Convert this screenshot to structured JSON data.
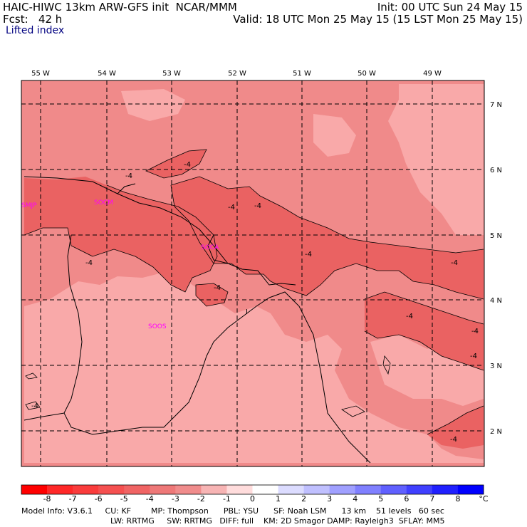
{
  "header": {
    "model_title": "HAIC-HIWC 13km ARW-GFS init",
    "org": "NCAR/MMM",
    "init": "Init: 00 UTC Sun 24 May 15",
    "fcst_label": "Fcst:",
    "fcst_value": "42 h",
    "valid": "Valid: 18 UTC Mon 25 May 15 (15 LST Mon 25 May 15)",
    "field": "Lifted index"
  },
  "map": {
    "lon_labels": [
      "55 W",
      "54 W",
      "53 W",
      "52 W",
      "51 W",
      "50 W",
      "49 W"
    ],
    "lat_labels": [
      "7 N",
      "6 N",
      "5 N",
      "4 N",
      "3 N",
      "2 N"
    ],
    "stations": [
      "SMJP",
      "SOCM",
      "SOCA",
      "SOOS"
    ],
    "contour_label": "-4",
    "contour_label_mark": "I",
    "colors": {
      "background": "#f08a8a",
      "lighter": "#f9a9a9",
      "darker": "#ea6262",
      "station": "#ff00ff",
      "grid": "#000000"
    }
  },
  "colorbar": {
    "ticks": [
      "-8",
      "-7",
      "-6",
      "-5",
      "-4",
      "-3",
      "-2",
      "-1",
      "0",
      "1",
      "2",
      "3",
      "4",
      "5",
      "6",
      "7",
      "8"
    ],
    "unit": "°C",
    "colors": [
      "#ff0000",
      "#ff2828",
      "#fa3c3c",
      "#f55050",
      "#f06464",
      "#ee7878",
      "#f08c8c",
      "#f7b4b4",
      "#ffdcdc",
      "#ffffff",
      "#dcdcff",
      "#c0c0ff",
      "#a0a0ff",
      "#8080ff",
      "#6060ff",
      "#4040ff",
      "#2020ff",
      "#0000ff"
    ]
  },
  "footer": {
    "line1": "Model Info: V3.6.1     CU: KF        MP: Thompson      PBL: YSU      SF: Noah LSM      13 km    51 levels   60 sec",
    "line2": "LW: RRTMG     SW: RRTMG   DIFF: full    KM: 2D Smagor DAMP: Rayleigh3  SFLAY: MM5"
  }
}
